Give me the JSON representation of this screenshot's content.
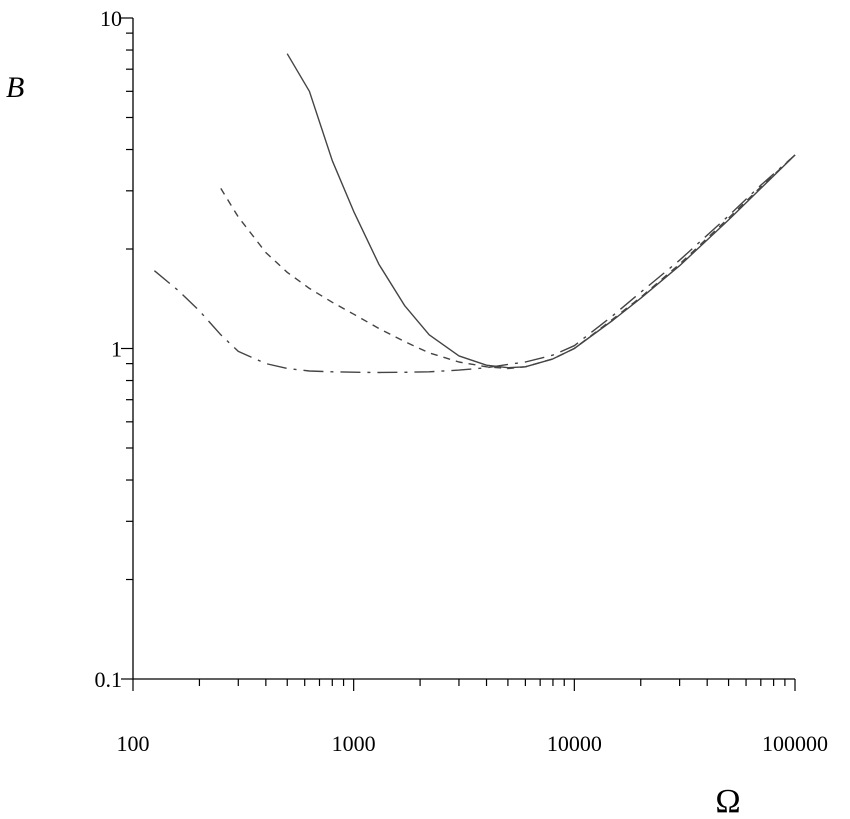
{
  "chart_data": {
    "type": "line",
    "xlabel": "Ω",
    "ylabel": "B",
    "xscale": "log",
    "yscale": "log",
    "xlim": [
      100,
      100000
    ],
    "ylim": [
      0.1,
      10
    ],
    "xticks": [
      "100",
      "1000",
      "10000",
      "100000"
    ],
    "yticks": [
      "0.1",
      "1",
      "10"
    ],
    "grid": false,
    "legend": "none",
    "series": [
      {
        "style": "solid",
        "color": "#444444",
        "x": [
          500,
          630,
          800,
          1000,
          1300,
          1700,
          2200,
          3000,
          4000,
          5000,
          6000,
          8000,
          10000,
          15000,
          20000,
          30000,
          50000,
          70000,
          100000
        ],
        "y": [
          7.8,
          6.0,
          3.7,
          2.6,
          1.8,
          1.35,
          1.1,
          0.95,
          0.89,
          0.875,
          0.88,
          0.93,
          1.0,
          1.22,
          1.42,
          1.78,
          2.45,
          3.05,
          3.85
        ]
      },
      {
        "style": "dashed",
        "color": "#444444",
        "x": [
          250,
          300,
          400,
          500,
          630,
          800,
          1000,
          1300,
          1700,
          2200,
          3000,
          4000,
          5000,
          6000,
          8000,
          10000,
          15000,
          20000,
          30000,
          50000,
          70000,
          100000
        ],
        "y": [
          3.05,
          2.5,
          1.95,
          1.7,
          1.52,
          1.38,
          1.27,
          1.15,
          1.05,
          0.97,
          0.91,
          0.88,
          0.87,
          0.88,
          0.93,
          1.0,
          1.23,
          1.43,
          1.8,
          2.48,
          3.08,
          3.85
        ]
      },
      {
        "style": "dashdot",
        "color": "#444444",
        "x": [
          125,
          160,
          200,
          250,
          300,
          400,
          500,
          630,
          800,
          1000,
          1300,
          1700,
          2200,
          3000,
          4000,
          5000,
          6000,
          8000,
          10000,
          15000,
          20000,
          30000,
          50000,
          70000,
          100000
        ],
        "y": [
          1.72,
          1.5,
          1.3,
          1.1,
          0.98,
          0.9,
          0.87,
          0.855,
          0.85,
          0.848,
          0.846,
          0.847,
          0.85,
          0.86,
          0.875,
          0.895,
          0.91,
          0.955,
          1.02,
          1.26,
          1.48,
          1.85,
          2.52,
          3.12,
          3.85
        ]
      }
    ]
  }
}
